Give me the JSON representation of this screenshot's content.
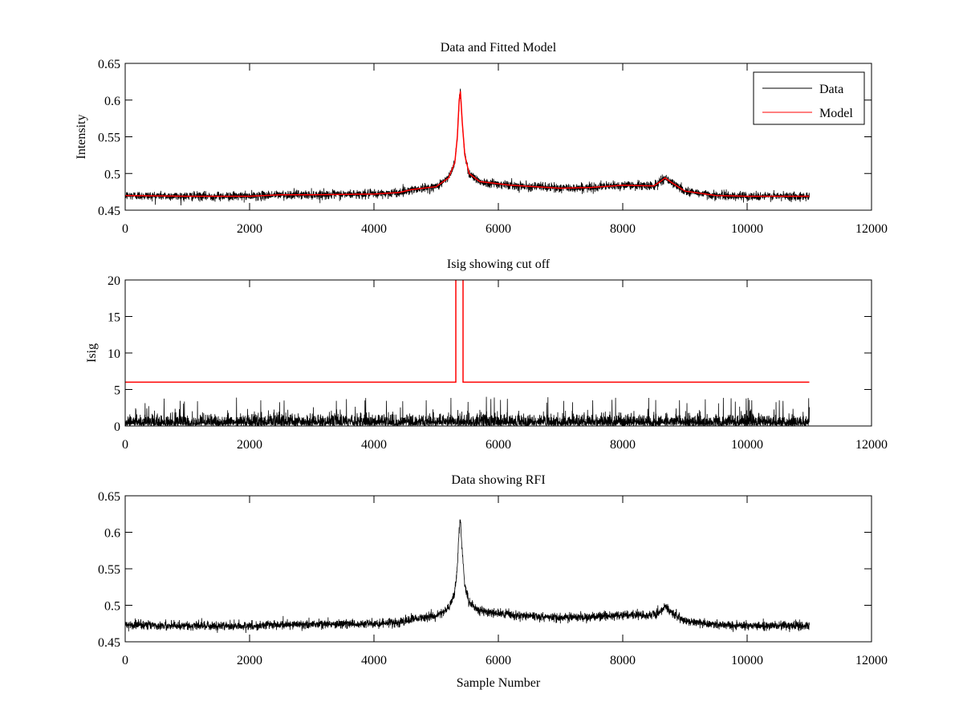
{
  "chart_data": [
    {
      "type": "line",
      "title": "Data and Fitted Model",
      "xlabel": "",
      "ylabel": "Intensity",
      "xlim": [
        0,
        12000
      ],
      "ylim": [
        0.45,
        0.65
      ],
      "xticks": [
        0,
        2000,
        4000,
        6000,
        8000,
        10000,
        12000
      ],
      "yticks": [
        0.45,
        0.5,
        0.55,
        0.6,
        0.65
      ],
      "ytick_labels": [
        "0.45",
        "0.5",
        "0.55",
        "0.6",
        "0.65"
      ],
      "legend": {
        "placement": "top-right",
        "entries": [
          {
            "label": "Data",
            "color": "#000000"
          },
          {
            "label": "Model",
            "color": "#ff0000"
          }
        ]
      },
      "series": [
        {
          "name": "Data",
          "color": "#000000",
          "x_range": [
            0,
            11000
          ],
          "noise_amplitude": 0.006,
          "follows": "Model"
        },
        {
          "name": "Model",
          "color": "#ff0000",
          "points": [
            [
              0,
              0.47
            ],
            [
              1000,
              0.469
            ],
            [
              2000,
              0.469
            ],
            [
              2500,
              0.471
            ],
            [
              3000,
              0.471
            ],
            [
              4000,
              0.472
            ],
            [
              4400,
              0.474
            ],
            [
              4600,
              0.478
            ],
            [
              5000,
              0.482
            ],
            [
              5200,
              0.494
            ],
            [
              5300,
              0.515
            ],
            [
              5340,
              0.55
            ],
            [
              5370,
              0.6
            ],
            [
              5390,
              0.612
            ],
            [
              5420,
              0.57
            ],
            [
              5460,
              0.525
            ],
            [
              5530,
              0.5
            ],
            [
              5700,
              0.489
            ],
            [
              6200,
              0.484
            ],
            [
              7000,
              0.48
            ],
            [
              7500,
              0.481
            ],
            [
              8000,
              0.484
            ],
            [
              8500,
              0.483
            ],
            [
              8620,
              0.49
            ],
            [
              8680,
              0.494
            ],
            [
              8780,
              0.488
            ],
            [
              9000,
              0.476
            ],
            [
              9500,
              0.47
            ],
            [
              10000,
              0.469
            ],
            [
              11000,
              0.469
            ]
          ]
        }
      ]
    },
    {
      "type": "line",
      "title": "Isig showing cut off",
      "xlabel": "",
      "ylabel": "Isig",
      "xlim": [
        0,
        12000
      ],
      "ylim": [
        0,
        20
      ],
      "xticks": [
        0,
        2000,
        4000,
        6000,
        8000,
        10000,
        12000
      ],
      "yticks": [
        0,
        5,
        10,
        15,
        20
      ],
      "ytick_labels": [
        "0",
        "5",
        "10",
        "15",
        "20"
      ],
      "series": [
        {
          "name": "Isig",
          "color": "#000000",
          "x_range": [
            0,
            11000
          ],
          "typical_max": 3,
          "peak_max": 4
        },
        {
          "name": "Cut off",
          "color": "#ff0000",
          "points": [
            [
              0,
              6
            ],
            [
              5316,
              6
            ],
            [
              5316,
              21
            ],
            [
              5432,
              21
            ],
            [
              5432,
              6
            ],
            [
              11000,
              6
            ]
          ]
        }
      ]
    },
    {
      "type": "line",
      "title": "Data showing RFI",
      "xlabel": "Sample Number",
      "ylabel": "",
      "xlim": [
        0,
        12000
      ],
      "ylim": [
        0.45,
        0.65
      ],
      "xticks": [
        0,
        2000,
        4000,
        6000,
        8000,
        10000,
        12000
      ],
      "yticks": [
        0.45,
        0.5,
        0.55,
        0.6,
        0.65
      ],
      "ytick_labels": [
        "0.45",
        "0.5",
        "0.55",
        "0.6",
        "0.65"
      ],
      "series": [
        {
          "name": "Data",
          "color": "#000000",
          "x_range": [
            0,
            11000
          ],
          "noise_amplitude": 0.006,
          "baseline_offset": 0.003
        }
      ]
    }
  ]
}
